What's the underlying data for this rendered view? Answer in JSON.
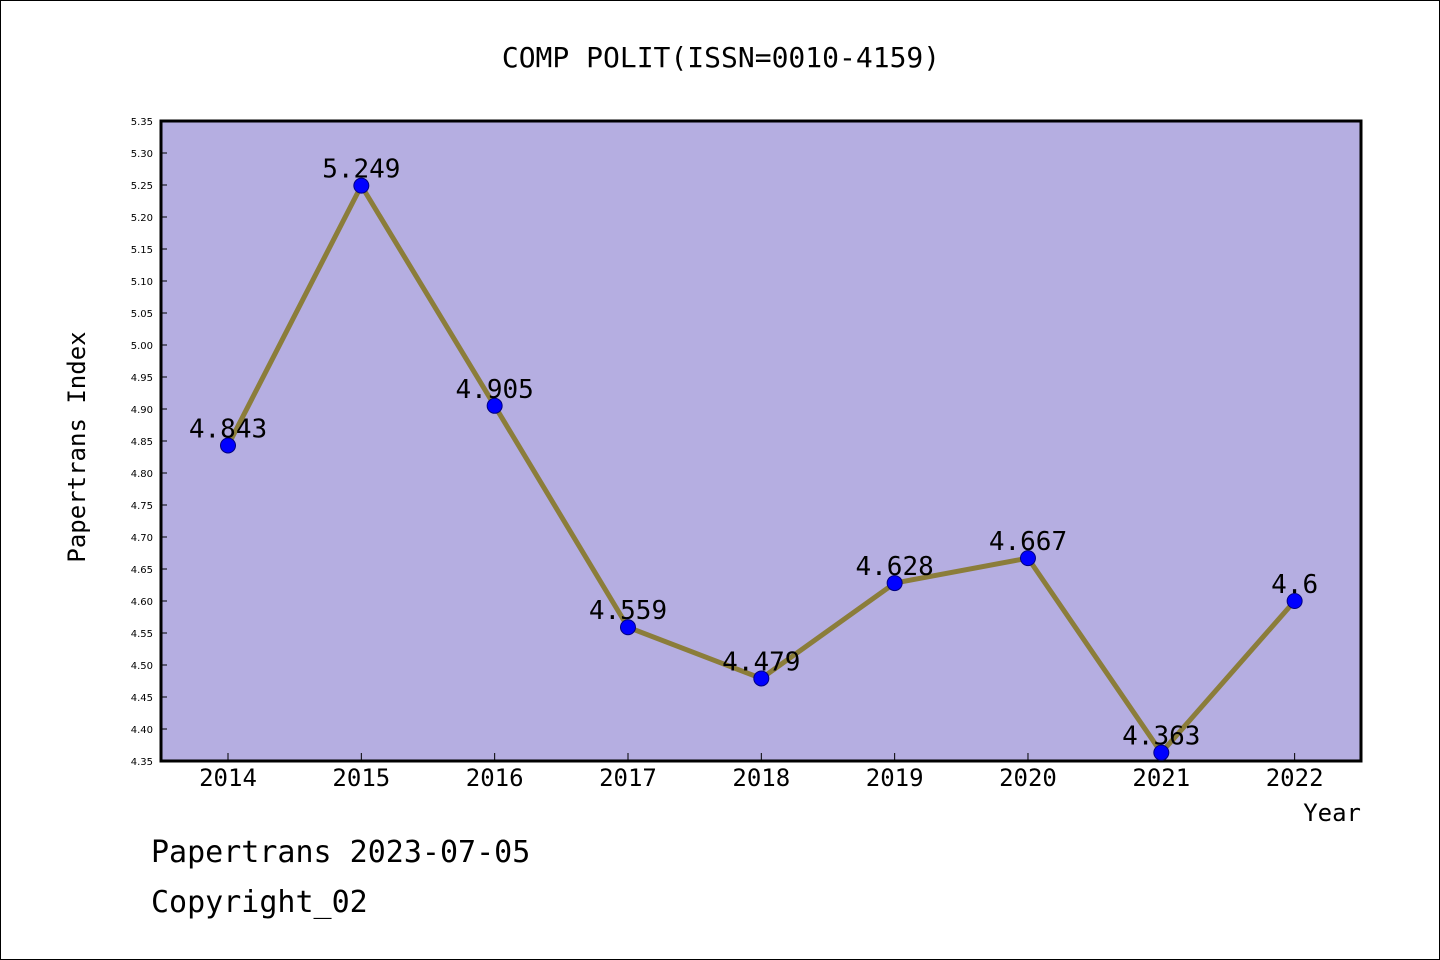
{
  "chart_data": {
    "type": "line",
    "title": "COMP POLIT(ISSN=0010-4159)",
    "xlabel": "Year",
    "ylabel": "Papertrans Index",
    "categories": [
      "2014",
      "2015",
      "2016",
      "2017",
      "2018",
      "2019",
      "2020",
      "2021",
      "2022"
    ],
    "values": [
      4.843,
      5.249,
      4.905,
      4.559,
      4.479,
      4.628,
      4.667,
      4.363,
      4.6
    ],
    "data_labels": [
      "4.843",
      "5.249",
      "4.905",
      "4.559",
      "4.479",
      "4.628",
      "4.667",
      "4.363",
      "4.6"
    ],
    "ylim": [
      4.35,
      5.35
    ],
    "ytick_step": 0.05,
    "grid": false,
    "legend": "none",
    "colors": {
      "plot_background": "#b5aee1",
      "line": "#8b7d3a",
      "marker_fill": "#0000ff",
      "marker_edge": "#000080",
      "frame": "#000000"
    }
  },
  "footer": {
    "line1": "Papertrans 2023-07-05",
    "line2": "Copyright_02"
  }
}
